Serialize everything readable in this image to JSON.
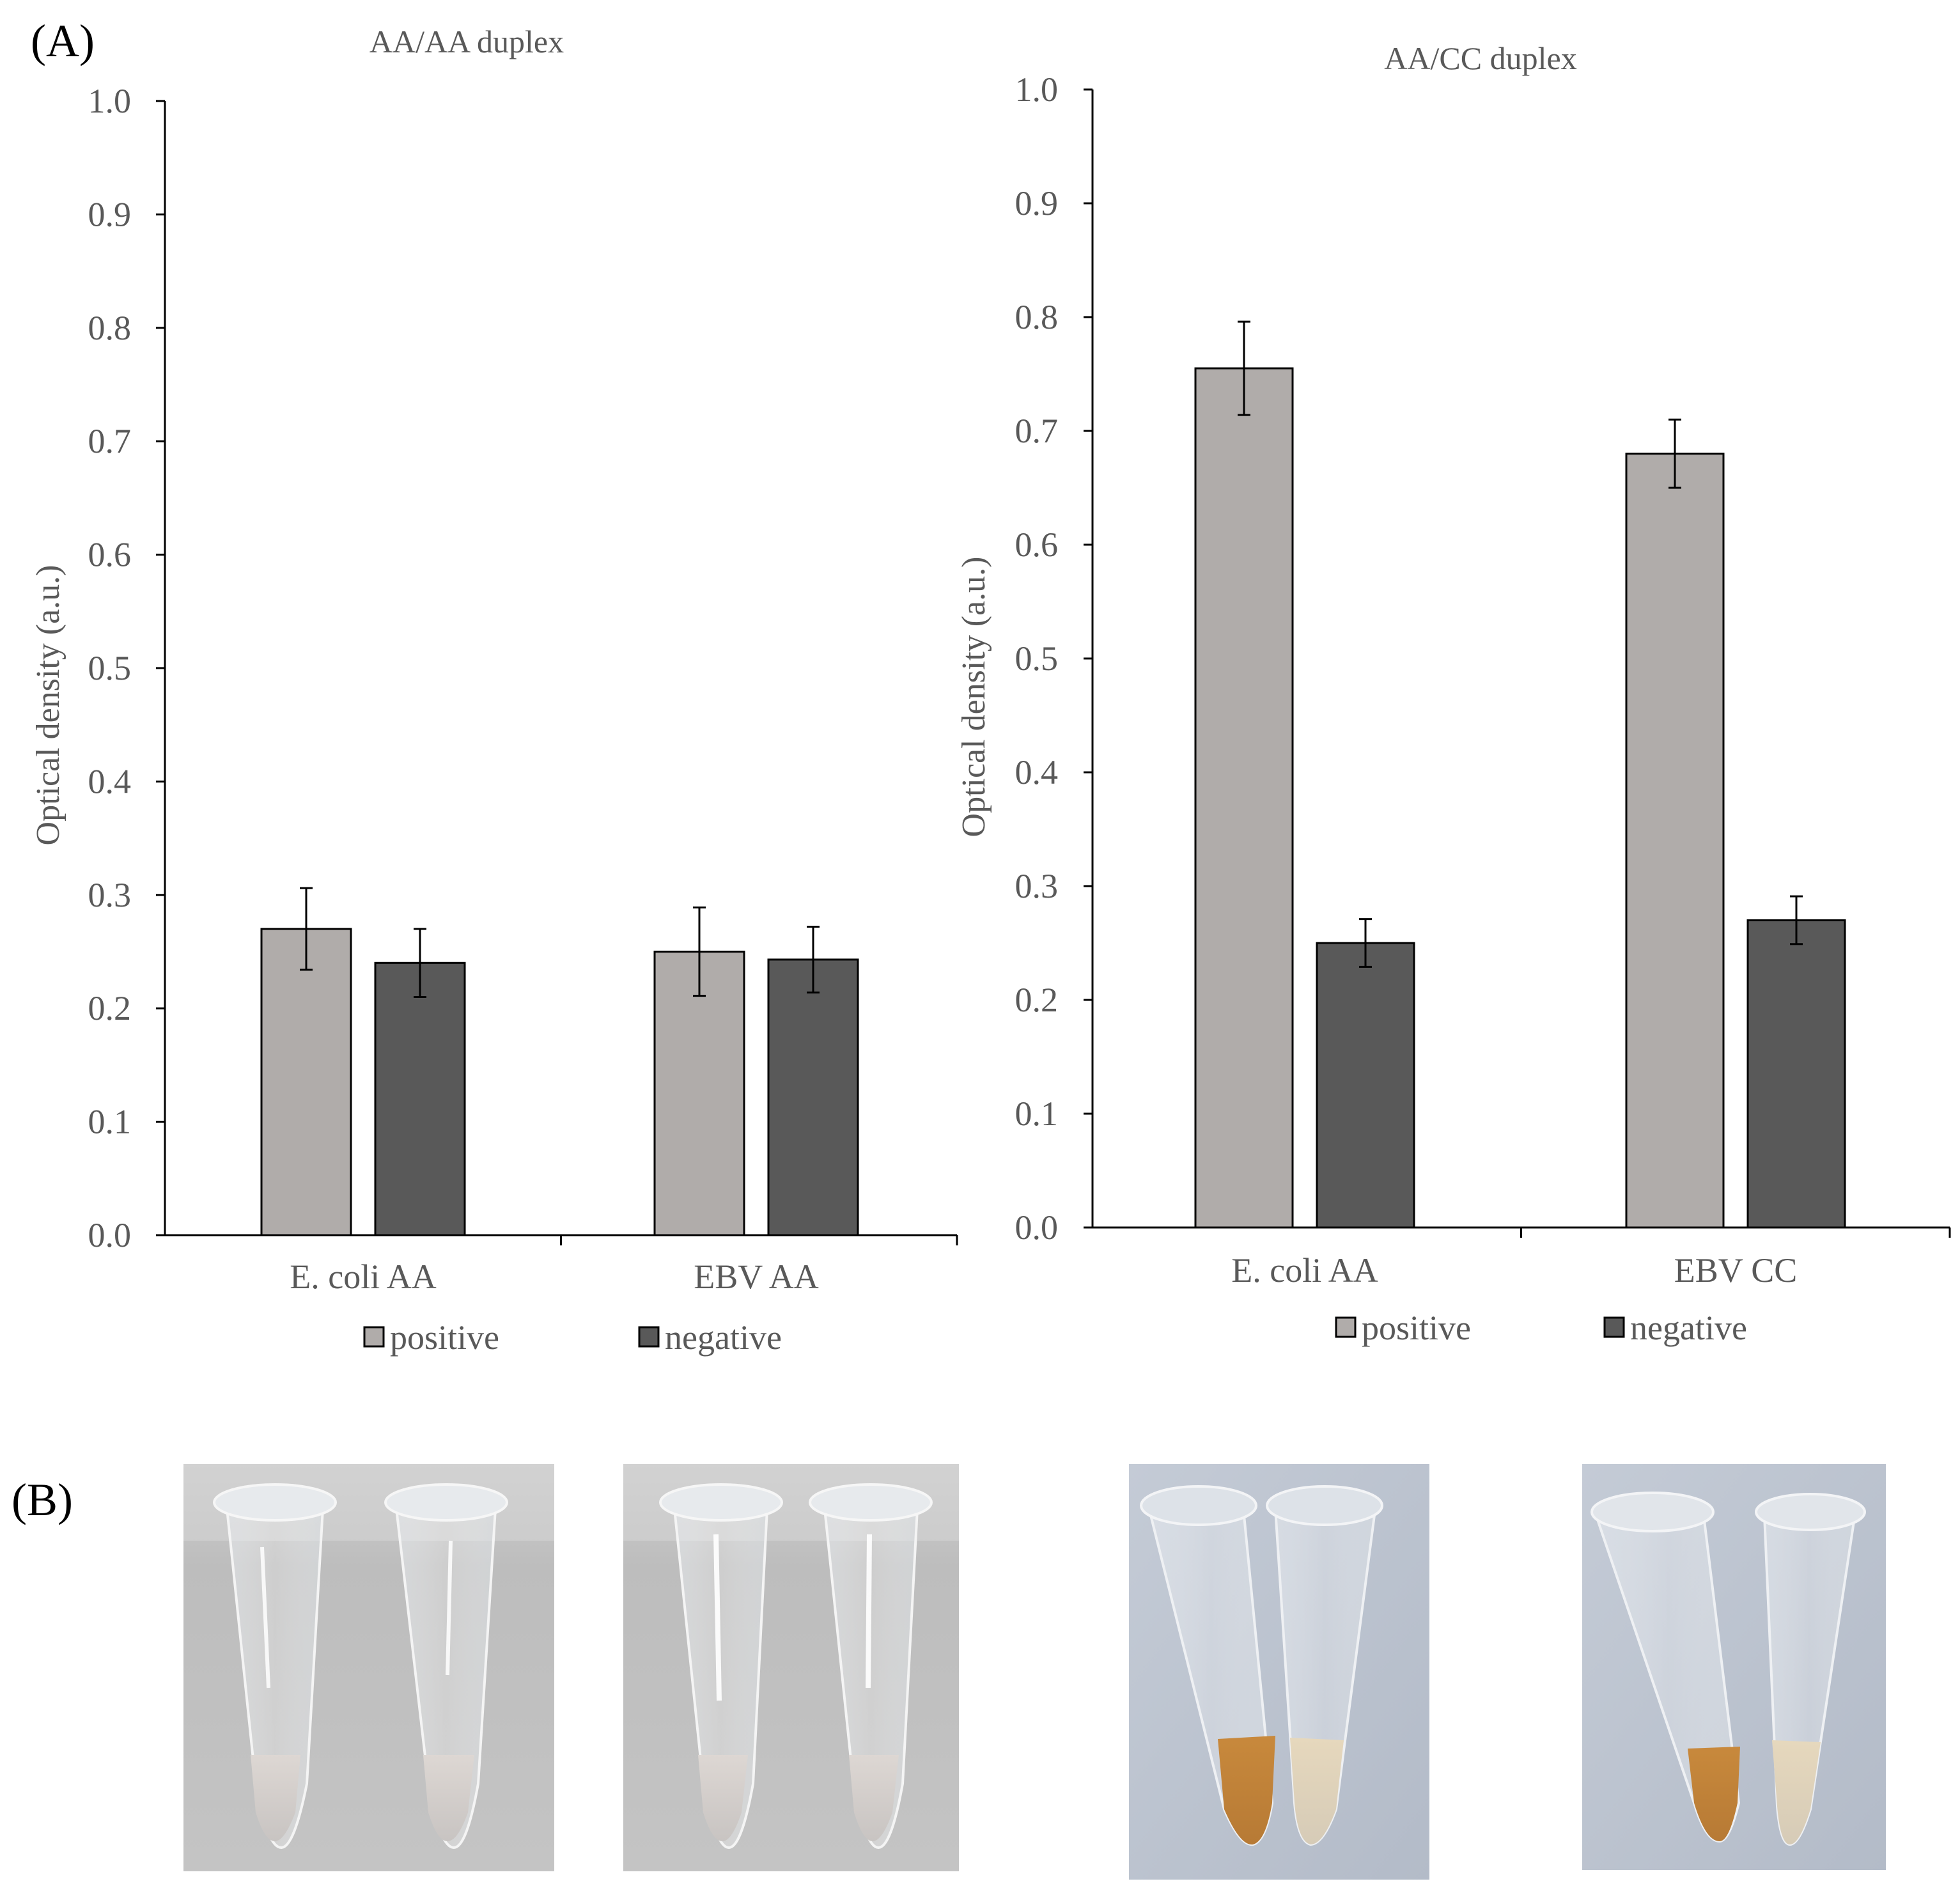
{
  "panel_labels": {
    "a": "(A)",
    "b": "(B)"
  },
  "colors": {
    "positive": "#b0acaa",
    "negative": "#595959",
    "axis": "#000000",
    "text": "#595959"
  },
  "chart_data": [
    {
      "type": "bar",
      "title": "AA/AA duplex",
      "xlabel": "",
      "ylabel": "Optical density (a.u.)",
      "ylim": [
        0,
        1.0
      ],
      "yticks": [
        "0.0",
        "0.1",
        "0.2",
        "0.3",
        "0.4",
        "0.5",
        "0.6",
        "0.7",
        "0.8",
        "0.9",
        "1.0"
      ],
      "categories": [
        "E. coli AA",
        "EBV AA"
      ],
      "series": [
        {
          "name": "positive",
          "values": [
            0.27,
            0.25
          ],
          "errors": [
            0.036,
            0.039
          ]
        },
        {
          "name": "negative",
          "values": [
            0.24,
            0.243
          ],
          "errors": [
            0.03,
            0.029
          ]
        }
      ],
      "legend": [
        "positive",
        "negative"
      ],
      "legend_position": "bottom",
      "grid": false
    },
    {
      "type": "bar",
      "title": "AA/CC duplex",
      "xlabel": "",
      "ylabel": "Optical density (a.u.)",
      "ylim": [
        0,
        1.0
      ],
      "yticks": [
        "0.0",
        "0.1",
        "0.2",
        "0.3",
        "0.4",
        "0.5",
        "0.6",
        "0.7",
        "0.8",
        "0.9",
        "1.0"
      ],
      "categories": [
        "E. coli AA",
        "EBV CC"
      ],
      "series": [
        {
          "name": "positive",
          "values": [
            0.755,
            0.68
          ],
          "errors": [
            0.041,
            0.03
          ]
        },
        {
          "name": "negative",
          "values": [
            0.25,
            0.27
          ],
          "errors": [
            0.021,
            0.021
          ]
        }
      ],
      "legend": [
        "positive",
        "negative"
      ],
      "legend_position": "bottom",
      "grid": false
    }
  ],
  "photos": [
    {
      "name": "tube-photo-aa-ecoli",
      "tubes": [
        "clear",
        "clear"
      ]
    },
    {
      "name": "tube-photo-aa-ebv",
      "tubes": [
        "clear",
        "clear"
      ]
    },
    {
      "name": "tube-photo-cc-ecoli",
      "tubes": [
        "orange",
        "pale"
      ]
    },
    {
      "name": "tube-photo-cc-ebv",
      "tubes": [
        "orange",
        "pale"
      ]
    }
  ]
}
